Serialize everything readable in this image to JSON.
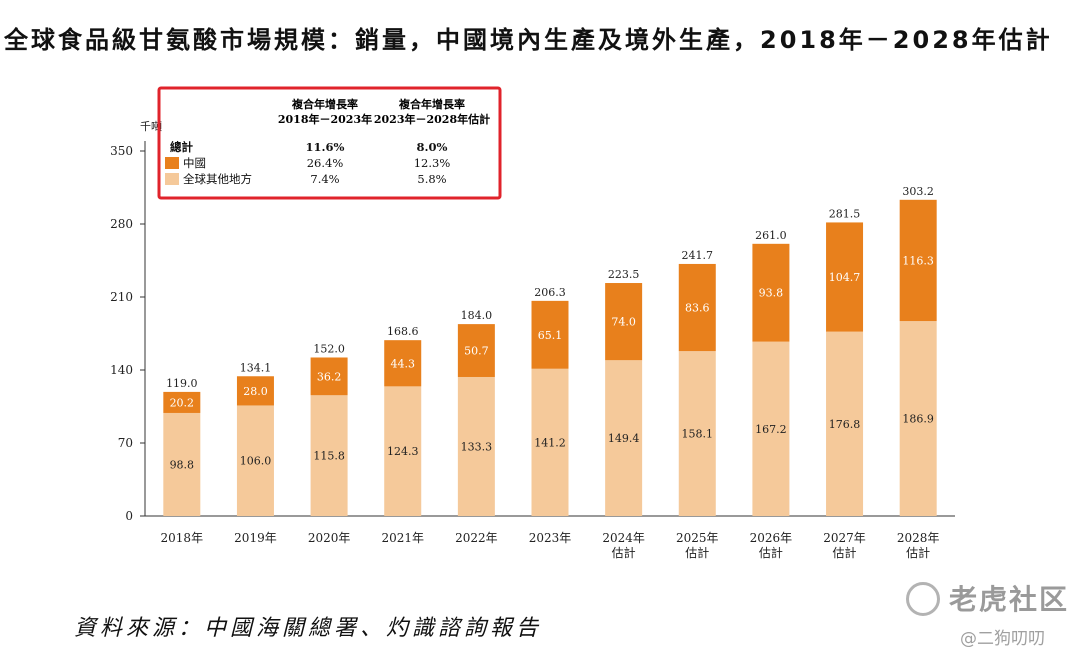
{
  "title": "全球食品級甘氨酸市場規模：銷量，中國境內生產及境外生產，2018年－2028年估計",
  "source": "資料來源：中國海關總署、灼識諮詢報告",
  "watermark": {
    "brand": "老虎社区",
    "user": "@二狗叨叨"
  },
  "colors": {
    "china": "#e8801c",
    "rest": "#f5c99a",
    "highlight_box": "#e0232b",
    "axis": "#333333"
  },
  "cagr_table": {
    "header_col1": [
      "複合年增長率",
      "2018年－2023年"
    ],
    "header_col2": [
      "複合年增長率",
      "2023年－2028年估計"
    ],
    "rows": [
      {
        "label": "總計",
        "v1": "11.6%",
        "v2": "8.0%",
        "bold": true,
        "swatch": ""
      },
      {
        "label": "中國",
        "v1": "26.4%",
        "v2": "12.3%",
        "bold": false,
        "swatch": "china"
      },
      {
        "label": "全球其他地方",
        "v1": "7.4%",
        "v2": "5.8%",
        "bold": false,
        "swatch": "rest"
      }
    ]
  },
  "chart_data": {
    "type": "bar",
    "stacked": true,
    "ylabel": "千噸",
    "ylim": [
      0,
      350
    ],
    "yticks": [
      0,
      70,
      140,
      210,
      280,
      350
    ],
    "categories": [
      "2018年",
      "2019年",
      "2020年",
      "2021年",
      "2022年",
      "2023年",
      "2024年\n估計",
      "2025年\n估計",
      "2026年\n估計",
      "2027年\n估計",
      "2028年\n估計"
    ],
    "series": [
      {
        "name": "全球其他地方",
        "values": [
          98.8,
          106.0,
          115.8,
          124.3,
          133.3,
          141.2,
          149.4,
          158.1,
          167.2,
          176.8,
          186.9
        ],
        "labels": [
          "98.8",
          "106.0",
          "115.8",
          "124.3",
          "133.3",
          "141.2",
          "149.4",
          "158.1",
          "167.2",
          "176.8",
          "186.9"
        ]
      },
      {
        "name": "中國",
        "values": [
          20.2,
          28.0,
          36.2,
          44.3,
          50.7,
          65.1,
          74.0,
          83.6,
          93.8,
          104.7,
          116.3
        ],
        "labels": [
          "20.2",
          "28.0",
          "36.2",
          "44.3",
          "50.7",
          "65.1",
          "74.0",
          "83.6",
          "93.8",
          "104.7",
          "116.3"
        ]
      }
    ],
    "totals": [
      119.0,
      134.1,
      152.0,
      168.6,
      184.0,
      206.3,
      223.5,
      241.7,
      261.0,
      281.5,
      303.2
    ],
    "total_labels": [
      "119.0",
      "134.1",
      "152.0",
      "168.6",
      "184.0",
      "206.3",
      "223.5",
      "241.7",
      "261.0",
      "281.5",
      "303.2"
    ]
  }
}
